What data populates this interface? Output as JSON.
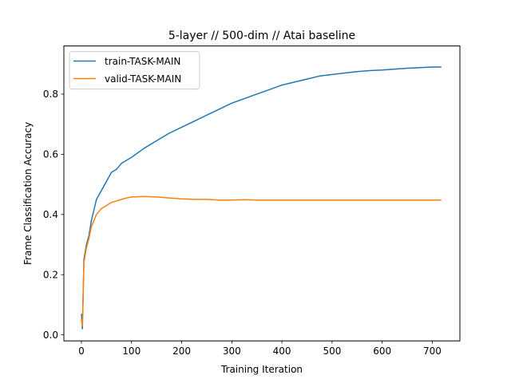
{
  "chart_data": {
    "type": "line",
    "title": "5-layer // 500-dim // Atai baseline",
    "xlabel": "Training Iteration",
    "ylabel": "Frame Classification Accuracy",
    "xlim": [
      -35,
      755
    ],
    "ylim": [
      -0.02,
      0.96
    ],
    "xticks": [
      0,
      100,
      200,
      300,
      400,
      500,
      600,
      700
    ],
    "yticks": [
      0.0,
      0.2,
      0.4,
      0.6,
      0.8
    ],
    "ytick_labels": [
      "0.0",
      "0.2",
      "0.4",
      "0.6",
      "0.8"
    ],
    "grid": false,
    "legend_position": "top-left",
    "series": [
      {
        "name": "train-TASK-MAIN",
        "color": "#1f77b4",
        "x": [
          0,
          2,
          5,
          10,
          15,
          20,
          30,
          40,
          50,
          60,
          70,
          80,
          90,
          100,
          125,
          150,
          175,
          200,
          225,
          250,
          275,
          300,
          325,
          350,
          375,
          400,
          425,
          450,
          475,
          500,
          525,
          550,
          575,
          600,
          625,
          650,
          675,
          700,
          718
        ],
        "y": [
          0.07,
          0.02,
          0.25,
          0.3,
          0.33,
          0.38,
          0.45,
          0.48,
          0.51,
          0.54,
          0.55,
          0.57,
          0.58,
          0.59,
          0.62,
          0.645,
          0.67,
          0.69,
          0.71,
          0.73,
          0.75,
          0.77,
          0.785,
          0.8,
          0.815,
          0.83,
          0.84,
          0.85,
          0.86,
          0.865,
          0.87,
          0.875,
          0.878,
          0.88,
          0.883,
          0.886,
          0.888,
          0.89,
          0.89
        ]
      },
      {
        "name": "valid-TASK-MAIN",
        "color": "#ff7f0e",
        "x": [
          0,
          2,
          5,
          10,
          15,
          20,
          30,
          40,
          50,
          60,
          70,
          80,
          90,
          100,
          125,
          150,
          175,
          200,
          225,
          250,
          275,
          300,
          325,
          350,
          375,
          400,
          425,
          450,
          475,
          500,
          525,
          550,
          575,
          600,
          625,
          650,
          675,
          700,
          718
        ],
        "y": [
          0.05,
          0.03,
          0.24,
          0.29,
          0.32,
          0.36,
          0.4,
          0.42,
          0.43,
          0.44,
          0.445,
          0.45,
          0.455,
          0.458,
          0.46,
          0.458,
          0.455,
          0.452,
          0.45,
          0.45,
          0.448,
          0.448,
          0.449,
          0.448,
          0.448,
          0.448,
          0.448,
          0.448,
          0.448,
          0.448,
          0.448,
          0.448,
          0.448,
          0.448,
          0.448,
          0.448,
          0.448,
          0.448,
          0.448
        ]
      }
    ]
  }
}
